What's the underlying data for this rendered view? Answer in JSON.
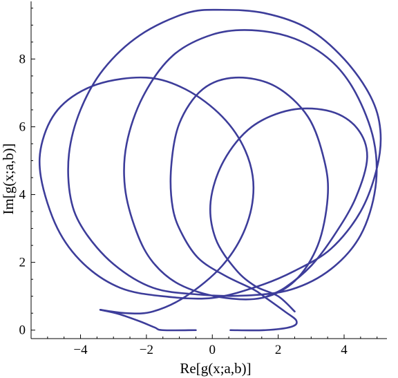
{
  "chart_data": {
    "type": "line",
    "title": "",
    "xlabel": "Re[g(x;a,b)]",
    "ylabel": "Im[g(x;a,b)]",
    "xlim": [
      -5.5,
      5.3
    ],
    "ylim": [
      -0.25,
      9.7
    ],
    "x_ticks": [
      -4,
      -2,
      0,
      2,
      4
    ],
    "x_tick_labels": [
      "−4",
      "−2",
      "0",
      "2",
      "4"
    ],
    "y_ticks": [
      0,
      2,
      4,
      6,
      8
    ],
    "y_tick_labels": [
      "0",
      "2",
      "4",
      "6",
      "8"
    ],
    "grid": false,
    "line_color": "#3d3d9a",
    "series": [
      {
        "segments": [
          [
            [
              -3.4,
              0.6
            ],
            [
              -2.85,
              0.48
            ],
            [
              -2.2,
              0.26
            ],
            [
              -1.75,
              0.08
            ],
            [
              -1.5,
              0.0
            ],
            [
              -0.5,
              0.0
            ]
          ],
          [
            [
              0.55,
              0.0
            ],
            [
              1.6,
              0.0
            ],
            [
              2.4,
              0.1
            ],
            [
              2.55,
              0.28
            ],
            [
              2.2,
              0.55
            ],
            [
              1.6,
              0.97
            ],
            [
              1.25,
              1.2
            ],
            [
              0.4,
              1.6
            ],
            [
              -0.4,
              2.1
            ],
            [
              -0.9,
              2.8
            ],
            [
              -1.2,
              3.6
            ],
            [
              -1.25,
              4.8
            ],
            [
              -1.0,
              6.1
            ],
            [
              -0.3,
              7.1
            ],
            [
              0.7,
              7.45
            ],
            [
              1.9,
              7.2
            ],
            [
              2.9,
              6.3
            ],
            [
              3.4,
              5.0
            ],
            [
              3.5,
              3.9
            ],
            [
              3.2,
              2.5
            ],
            [
              2.5,
              1.45
            ],
            [
              1.5,
              0.95
            ],
            [
              0.2,
              0.98
            ],
            [
              -1.0,
              1.35
            ],
            [
              -1.8,
              2.0
            ],
            [
              -2.3,
              2.9
            ],
            [
              -2.65,
              4.2
            ],
            [
              -2.6,
              5.5
            ],
            [
              -2.1,
              6.9
            ],
            [
              -1.2,
              8.1
            ],
            [
              0.0,
              8.72
            ],
            [
              1.2,
              8.85
            ],
            [
              2.5,
              8.6
            ],
            [
              3.6,
              7.95
            ],
            [
              4.35,
              7.0
            ],
            [
              4.9,
              5.6
            ],
            [
              4.95,
              4.2
            ],
            [
              4.5,
              2.8
            ],
            [
              3.6,
              1.8
            ],
            [
              2.4,
              1.2
            ],
            [
              1.0,
              1.02
            ],
            [
              -0.4,
              1.05
            ],
            [
              -1.8,
              1.25
            ],
            [
              -3.0,
              1.95
            ],
            [
              -3.9,
              2.95
            ],
            [
              -4.3,
              3.9
            ],
            [
              -4.35,
              5.2
            ],
            [
              -4.0,
              6.5
            ],
            [
              -3.3,
              7.7
            ],
            [
              -2.2,
              8.7
            ],
            [
              -0.8,
              9.35
            ],
            [
              0.3,
              9.45
            ],
            [
              1.6,
              9.35
            ],
            [
              2.9,
              8.9
            ],
            [
              4.0,
              8.0
            ],
            [
              4.8,
              6.9
            ],
            [
              5.1,
              5.9
            ],
            [
              5.0,
              4.8
            ],
            [
              4.5,
              3.5
            ],
            [
              3.6,
              2.4
            ],
            [
              2.5,
              1.75
            ],
            [
              1.4,
              1.3
            ],
            [
              0.0,
              0.95
            ],
            [
              -1.5,
              1.0
            ],
            [
              -2.8,
              1.25
            ],
            [
              -3.9,
              1.95
            ],
            [
              -4.7,
              3.0
            ],
            [
              -5.2,
              4.5
            ],
            [
              -5.15,
              5.6
            ],
            [
              -4.6,
              6.6
            ],
            [
              -3.5,
              7.25
            ],
            [
              -2.0,
              7.45
            ],
            [
              -0.8,
              7.1
            ],
            [
              0.3,
              6.3
            ],
            [
              1.0,
              5.3
            ],
            [
              1.25,
              4.2
            ],
            [
              1.0,
              3.0
            ],
            [
              0.3,
              1.9
            ],
            [
              -0.8,
              1.0
            ],
            [
              -1.8,
              0.55
            ],
            [
              -2.6,
              0.5
            ],
            [
              -3.4,
              0.6
            ]
          ],
          [
            [
              1.6,
              0.97
            ],
            [
              2.2,
              1.25
            ],
            [
              3.0,
              1.9
            ],
            [
              3.7,
              2.8
            ],
            [
              4.35,
              3.9
            ],
            [
              4.7,
              5.1
            ],
            [
              4.4,
              5.95
            ],
            [
              3.6,
              6.45
            ],
            [
              2.4,
              6.5
            ],
            [
              1.2,
              6.0
            ],
            [
              0.35,
              5.0
            ],
            [
              -0.05,
              3.8
            ],
            [
              0.1,
              2.7
            ],
            [
              0.7,
              1.8
            ],
            [
              1.3,
              1.3
            ],
            [
              2.0,
              1.0
            ],
            [
              2.5,
              0.55
            ]
          ]
        ]
      }
    ]
  }
}
